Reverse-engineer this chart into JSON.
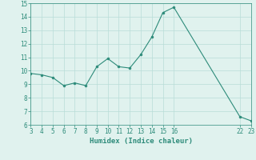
{
  "x": [
    3,
    4,
    5,
    6,
    7,
    8,
    9,
    10,
    11,
    12,
    13,
    14,
    15,
    16,
    22,
    23
  ],
  "y": [
    9.8,
    9.7,
    9.5,
    8.9,
    9.1,
    8.9,
    10.3,
    10.9,
    10.3,
    10.2,
    11.2,
    12.5,
    14.3,
    14.7,
    6.6,
    6.3
  ],
  "xlabel": "Humidex (Indice chaleur)",
  "xlim": [
    3,
    23
  ],
  "ylim": [
    6,
    15
  ],
  "yticks": [
    6,
    7,
    8,
    9,
    10,
    11,
    12,
    13,
    14,
    15
  ],
  "xticks": [
    3,
    4,
    5,
    6,
    7,
    8,
    9,
    10,
    11,
    12,
    13,
    14,
    15,
    16,
    22,
    23
  ],
  "line_color": "#2d8b7a",
  "marker_color": "#2d8b7a",
  "bg_color": "#e0f2ee",
  "grid_color": "#b8ddd8",
  "axes_color": "#2d8b7a",
  "tick_color": "#2d8b7a",
  "label_color": "#2d8b7a"
}
